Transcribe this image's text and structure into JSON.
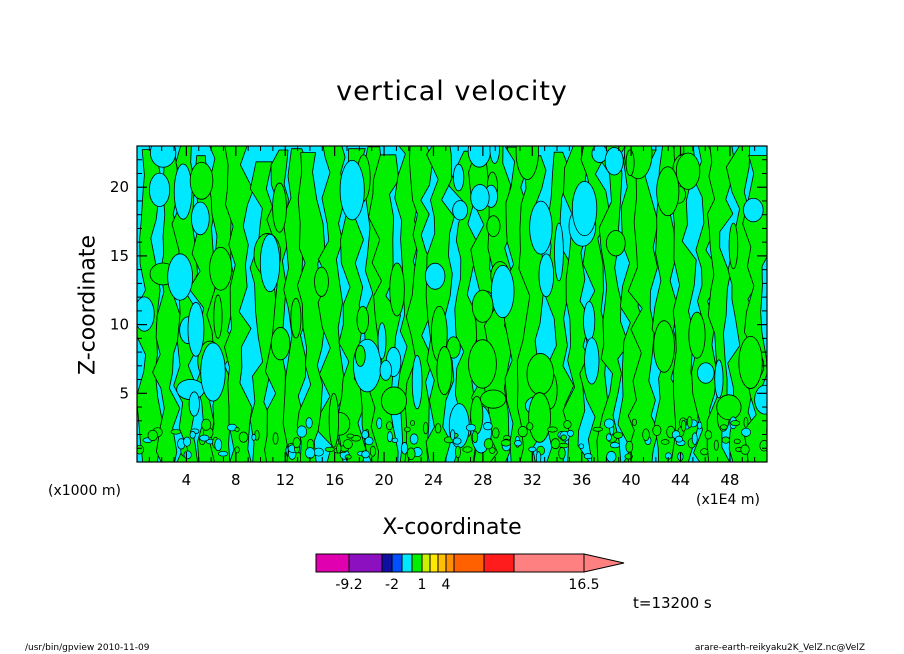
{
  "chart_data": {
    "type": "heatmap",
    "title": "vertical velocity",
    "xlabel": "X-coordinate",
    "ylabel": "Z-coordinate",
    "x_unit": "(x1E4 m)",
    "y_unit": "(x1000 m)",
    "xlim": [
      0,
      51
    ],
    "ylim": [
      0,
      23
    ],
    "xticks": [
      4,
      8,
      12,
      16,
      20,
      24,
      28,
      32,
      36,
      40,
      44,
      48
    ],
    "yticks": [
      5,
      10,
      15,
      20
    ],
    "field_levels": [
      {
        "range": "below 0",
        "color": "#00e8ff"
      },
      {
        "range": "0 to 1",
        "color": "#00f000"
      }
    ],
    "colorbar": {
      "colors": [
        "#e000b0",
        "#8c10c0",
        "#1010a0",
        "#0050ff",
        "#00e8ff",
        "#00f000",
        "#c8f000",
        "#ffe800",
        "#ffc000",
        "#ff9000",
        "#ff6000",
        "#ff1c1c",
        "#ff8080"
      ],
      "extension_color": "#ff8080",
      "labels": [
        "-9.2",
        "-2",
        "1",
        "4",
        "16.5"
      ]
    },
    "time_label": "t=13200 s"
  },
  "footer": {
    "left": "/usr/bin/gpview   2010-11-09",
    "right": "arare-earth-reikyaku2K_VelZ.nc@VelZ"
  }
}
